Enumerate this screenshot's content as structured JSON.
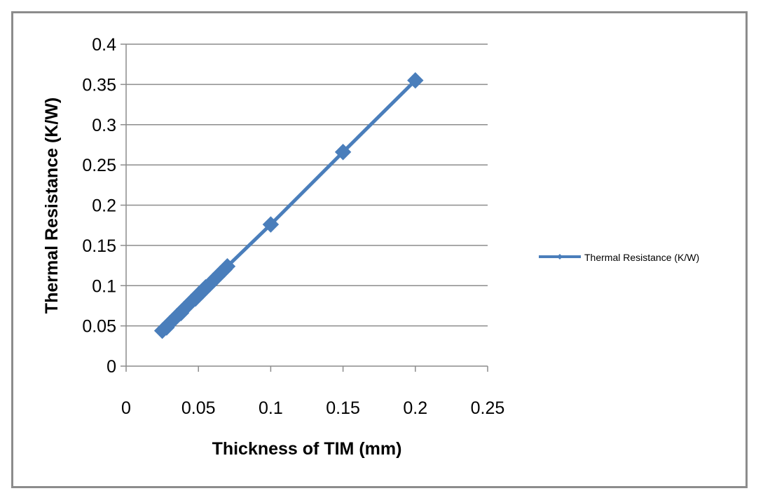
{
  "chart_data": {
    "type": "scatter",
    "title": "",
    "xlabel": "Thickness of TIM (mm)",
    "ylabel": "Thermal Resistance  (K/W)",
    "xlim": [
      0,
      0.25
    ],
    "ylim": [
      0,
      0.4
    ],
    "x_ticks": [
      "0",
      "0.05",
      "0.1",
      "0.15",
      "0.2",
      "0.25"
    ],
    "y_ticks": [
      "0",
      "0.05",
      "0.1",
      "0.15",
      "0.2",
      "0.25",
      "0.3",
      "0.35",
      "0.4"
    ],
    "grid": "horizontal",
    "legend_position": "right",
    "series": [
      {
        "name": "Thermal Resistance (K/W)",
        "color": "#4a7ebb",
        "marker": "diamond",
        "line": true,
        "points": [
          {
            "x": 0.025,
            "y": 0.044
          },
          {
            "x": 0.028,
            "y": 0.048
          },
          {
            "x": 0.03,
            "y": 0.053
          },
          {
            "x": 0.033,
            "y": 0.058
          },
          {
            "x": 0.035,
            "y": 0.062
          },
          {
            "x": 0.038,
            "y": 0.066
          },
          {
            "x": 0.04,
            "y": 0.071
          },
          {
            "x": 0.043,
            "y": 0.076
          },
          {
            "x": 0.045,
            "y": 0.08
          },
          {
            "x": 0.048,
            "y": 0.084
          },
          {
            "x": 0.05,
            "y": 0.089
          },
          {
            "x": 0.053,
            "y": 0.093
          },
          {
            "x": 0.055,
            "y": 0.098
          },
          {
            "x": 0.058,
            "y": 0.102
          },
          {
            "x": 0.06,
            "y": 0.106
          },
          {
            "x": 0.063,
            "y": 0.111
          },
          {
            "x": 0.065,
            "y": 0.115
          },
          {
            "x": 0.068,
            "y": 0.12
          },
          {
            "x": 0.07,
            "y": 0.124
          },
          {
            "x": 0.1,
            "y": 0.176
          },
          {
            "x": 0.15,
            "y": 0.266
          },
          {
            "x": 0.2,
            "y": 0.355
          }
        ]
      }
    ]
  }
}
